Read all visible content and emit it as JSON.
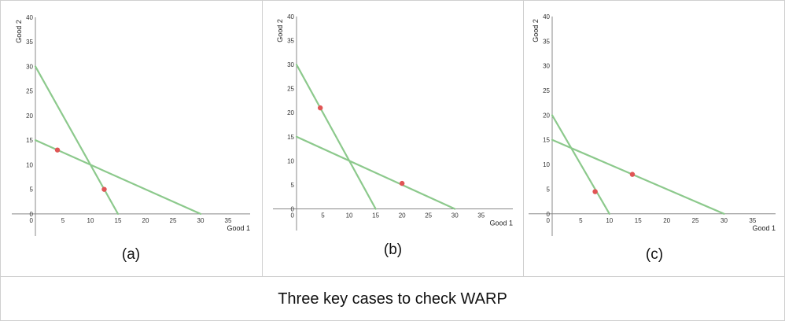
{
  "caption": "Three key cases to check WARP",
  "colors": {
    "budget_line": "#8cc98c",
    "choice_point": "#e05555",
    "axis": "#888888"
  },
  "chart_data": [
    {
      "type": "line",
      "label": "(a)",
      "xlabel": "Good 1",
      "ylabel": "Good 2",
      "xlim": [
        0,
        39
      ],
      "ylim": [
        -4.5,
        40
      ],
      "xticks": [
        0,
        5,
        10,
        15,
        20,
        25,
        30,
        35
      ],
      "yticks": [
        0,
        5,
        10,
        15,
        20,
        25,
        30,
        35,
        40
      ],
      "budget_lines": [
        {
          "x": [
            0,
            15
          ],
          "y": [
            30,
            0
          ]
        },
        {
          "x": [
            0,
            30
          ],
          "y": [
            15,
            0
          ]
        }
      ],
      "points": [
        {
          "x": 4,
          "y": 13
        },
        {
          "x": 12.5,
          "y": 5
        }
      ]
    },
    {
      "type": "line",
      "label": "(b)",
      "xlabel": "Good 1",
      "ylabel": "Good 2",
      "xlim": [
        0,
        41
      ],
      "ylim": [
        -4.5,
        40
      ],
      "xticks": [
        0,
        5,
        10,
        15,
        20,
        25,
        30,
        35
      ],
      "yticks": [
        0,
        5,
        10,
        15,
        20,
        25,
        30,
        35,
        40
      ],
      "budget_lines": [
        {
          "x": [
            0,
            15
          ],
          "y": [
            30,
            0
          ]
        },
        {
          "x": [
            0,
            30
          ],
          "y": [
            15,
            0
          ]
        }
      ],
      "points": [
        {
          "x": 4.5,
          "y": 21
        },
        {
          "x": 20,
          "y": 5.3
        }
      ]
    },
    {
      "type": "line",
      "label": "(c)",
      "xlabel": "Good 1",
      "ylabel": "Good 2",
      "xlim": [
        0,
        39
      ],
      "ylim": [
        -4.5,
        40
      ],
      "xticks": [
        0,
        5,
        10,
        15,
        20,
        25,
        30,
        35
      ],
      "yticks": [
        0,
        5,
        10,
        15,
        20,
        25,
        30,
        35,
        40
      ],
      "budget_lines": [
        {
          "x": [
            0,
            10
          ],
          "y": [
            20,
            0
          ]
        },
        {
          "x": [
            0,
            30
          ],
          "y": [
            15,
            0
          ]
        }
      ],
      "points": [
        {
          "x": 7.5,
          "y": 4.5
        },
        {
          "x": 14,
          "y": 8
        }
      ]
    }
  ]
}
